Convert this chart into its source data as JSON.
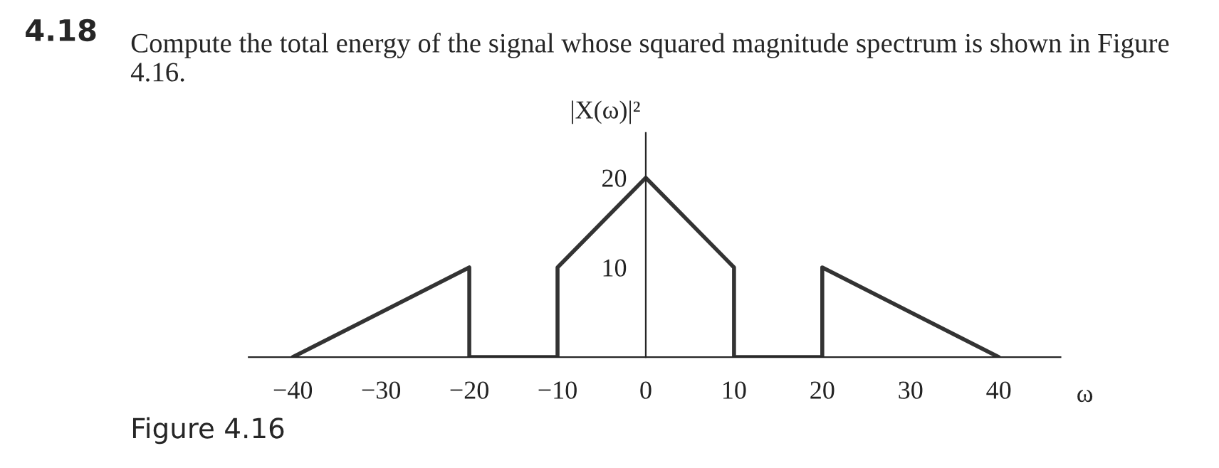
{
  "chart_data": {
    "type": "line",
    "title": "4.18",
    "subtitle": "Compute the total energy of the signal whose squared magnitude spectrum is shown in Figure 4.16.",
    "ylabel": "|X(ω)|²",
    "xlabel": "ω",
    "x": [
      -40,
      -20,
      -20,
      -10,
      -10,
      0,
      10,
      10,
      20,
      20,
      40
    ],
    "series": [
      {
        "color": "#333333",
        "values": [
          0,
          10,
          0,
          0,
          10,
          20,
          10,
          0,
          0,
          10,
          0
        ]
      }
    ],
    "xlim": [
      -45,
      47
    ],
    "ylim": [
      0,
      25
    ],
    "xticks": [
      {
        "value": -40,
        "label": "−40"
      },
      {
        "value": -30,
        "label": "−30"
      },
      {
        "value": -20,
        "label": "−20"
      },
      {
        "value": -10,
        "label": "−10"
      },
      0,
      10,
      20,
      30,
      40
    ],
    "yticks": [
      10,
      20
    ],
    "annotations": [
      "Figure 4.16"
    ],
    "grid": false,
    "legend": false,
    "marker": "none",
    "line_style": "solid"
  }
}
